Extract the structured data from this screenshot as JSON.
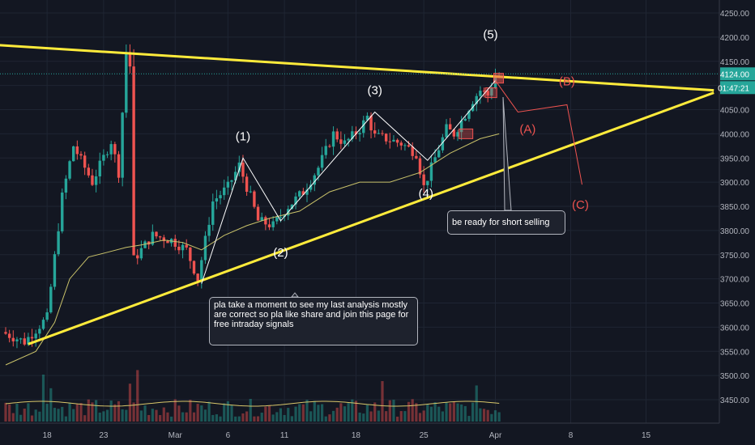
{
  "chart_data": {
    "type": "candlestick",
    "title": "",
    "xlabel": "",
    "ylabel": "",
    "colors": {
      "up": "#26a69a",
      "down": "#ef5350",
      "trendline": "#ffeb3b",
      "ma": "#c9c26a",
      "wave_labels": "#ffffff",
      "abc_labels": "#ef5350"
    },
    "y_ticks": [
      "3450.00",
      "3500.00",
      "3550.00",
      "3600.00",
      "3650.00",
      "3700.00",
      "3750.00",
      "3800.00",
      "3850.00",
      "3900.00",
      "3950.00",
      "4000.00",
      "4050.00",
      "4100.00",
      "4150.00",
      "4200.00",
      "4250.00"
    ],
    "x_ticks": [
      "18",
      "23",
      "Mar",
      "6",
      "11",
      "18",
      "25",
      "Apr",
      "8",
      "15"
    ],
    "price_label": "4124.00",
    "countdown_label": "01:47:21",
    "wave_labels": [
      "(1)",
      "(2)",
      "(3)",
      "(4)",
      "(5)"
    ],
    "correction_labels": [
      "(A)",
      "(B)",
      "(C)"
    ],
    "annotations": [
      "pla take a moment to see my last analysis mostly are correct so pla like share and join this page for free intraday signals",
      "be ready for short selling"
    ],
    "price_path": [
      [
        0,
        3590
      ],
      [
        6,
        3570
      ],
      [
        12,
        3620
      ],
      [
        16,
        3870
      ],
      [
        19,
        3975
      ],
      [
        24,
        3900
      ],
      [
        29,
        3985
      ],
      [
        31,
        3920
      ],
      [
        33,
        4170
      ],
      [
        34,
        4140
      ],
      [
        35,
        3740
      ],
      [
        40,
        3790
      ],
      [
        45,
        3780
      ],
      [
        49,
        3760
      ],
      [
        52,
        3700
      ],
      [
        56,
        3860
      ],
      [
        60,
        3890
      ],
      [
        63,
        3935
      ],
      [
        65,
        3890
      ],
      [
        66,
        3870
      ],
      [
        68,
        3820
      ],
      [
        72,
        3810
      ],
      [
        76,
        3850
      ],
      [
        80,
        3880
      ],
      [
        84,
        3930
      ],
      [
        88,
        4000
      ],
      [
        91,
        3980
      ],
      [
        95,
        4010
      ],
      [
        97,
        4035
      ],
      [
        99,
        3995
      ],
      [
        102,
        3990
      ],
      [
        106,
        3980
      ],
      [
        110,
        3960
      ],
      [
        112,
        3890
      ],
      [
        114,
        3930
      ],
      [
        118,
        4010
      ],
      [
        120,
        4000
      ],
      [
        123,
        4040
      ],
      [
        125,
        4070
      ],
      [
        127,
        4090
      ],
      [
        129,
        4080
      ],
      [
        131,
        4120
      ]
    ],
    "ma_path": [
      [
        0,
        3522
      ],
      [
        8,
        3550
      ],
      [
        13,
        3610
      ],
      [
        17,
        3700
      ],
      [
        22,
        3745
      ],
      [
        27,
        3755
      ],
      [
        32,
        3765
      ],
      [
        36,
        3770
      ],
      [
        42,
        3780
      ],
      [
        47,
        3775
      ],
      [
        52,
        3760
      ],
      [
        58,
        3790
      ],
      [
        64,
        3810
      ],
      [
        70,
        3825
      ],
      [
        78,
        3840
      ],
      [
        86,
        3880
      ],
      [
        94,
        3900
      ],
      [
        102,
        3900
      ],
      [
        110,
        3920
      ],
      [
        118,
        3960
      ],
      [
        126,
        3990
      ],
      [
        131,
        4000
      ]
    ],
    "trendlines": [
      {
        "from": [
          -5,
          4185
        ],
        "to": [
          188,
          4090
        ]
      },
      {
        "from": [
          6,
          3565
        ],
        "to": [
          188,
          4085
        ]
      }
    ],
    "wave_points": [
      [
        63,
        3950
      ],
      [
        73,
        3820
      ],
      [
        98,
        4045
      ],
      [
        112,
        3945
      ],
      [
        130,
        4110
      ]
    ],
    "correction_path": [
      [
        130,
        4110
      ],
      [
        136,
        4045
      ],
      [
        149,
        4060
      ],
      [
        153,
        3895
      ]
    ]
  }
}
